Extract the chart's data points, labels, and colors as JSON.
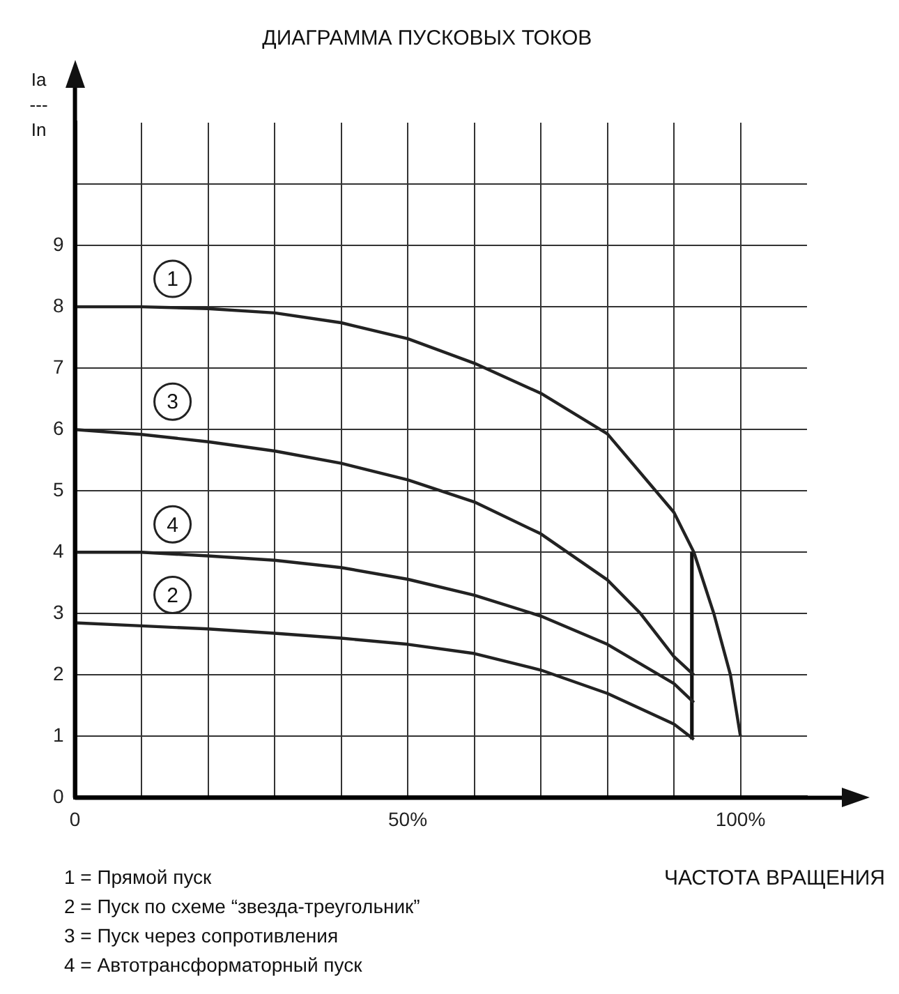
{
  "chart_data": {
    "type": "line",
    "title": "ДИАГРАММА ПУСКОВЫХ ТОКОВ",
    "xlabel": "ЧАСТОТА ВРАЩЕНИЯ",
    "ylabel": "Ia\n---\nIn",
    "xlim": [
      0,
      110
    ],
    "xticks": [
      0,
      {
        "value": 10,
        "label": null
      },
      {
        "value": 20,
        "label": null
      },
      {
        "value": 30,
        "label": null
      },
      {
        "value": 40,
        "label": null
      },
      {
        "value": 50,
        "label": "50%"
      },
      {
        "value": 60,
        "label": null
      },
      {
        "value": 70,
        "label": null
      },
      {
        "value": 80,
        "label": null
      },
      {
        "value": 90,
        "label": null
      },
      {
        "value": 100,
        "label": "100%"
      }
    ],
    "ylim": [
      0,
      11
    ],
    "yticks": [
      0,
      1,
      2,
      3,
      4,
      5,
      6,
      7,
      8,
      9,
      {
        "value": 10,
        "label": null
      }
    ],
    "grid": true,
    "marker": "none",
    "line_style": "solid",
    "series": [
      {
        "name": "1",
        "color": "#222222",
        "x": [
          0,
          10,
          20,
          30,
          40,
          50,
          60,
          70,
          80,
          90,
          93,
          96,
          98.5,
          100
        ],
        "values": [
          8,
          8,
          7.97,
          7.9,
          7.74,
          7.48,
          7.08,
          6.59,
          5.93,
          4.65,
          4,
          3,
          2,
          1
        ]
      },
      {
        "name": "2",
        "color": "#222222",
        "x": [
          0,
          10,
          20,
          30,
          40,
          50,
          60,
          70,
          80,
          90,
          93
        ],
        "values": [
          2.85,
          2.8,
          2.75,
          2.68,
          2.6,
          2.5,
          2.35,
          2.08,
          1.7,
          1.2,
          0.95
        ]
      },
      {
        "name": "3",
        "color": "#222222",
        "x": [
          0,
          10,
          20,
          30,
          40,
          50,
          60,
          70,
          80,
          85,
          90,
          93
        ],
        "values": [
          6,
          5.92,
          5.8,
          5.65,
          5.45,
          5.18,
          4.82,
          4.3,
          3.55,
          3,
          2.3,
          2
        ]
      },
      {
        "name": "4",
        "color": "#222222",
        "x": [
          0,
          10,
          20,
          30,
          40,
          50,
          60,
          70,
          80,
          90,
          93
        ],
        "values": [
          4,
          4,
          3.94,
          3.87,
          3.75,
          3.56,
          3.3,
          2.96,
          2.5,
          1.86,
          1.55
        ]
      },
      {
        "color": "#111111",
        "x": [
          92.7,
          92.7
        ],
        "values": [
          0.95,
          4
        ]
      }
    ],
    "annotations": [
      "1 = Прямой пуск",
      "2 = Пуск по схеме “звезда-треугольник”",
      "3 = Пуск через сопротивления",
      "4 = Автотрансформаторный пуск"
    ]
  }
}
